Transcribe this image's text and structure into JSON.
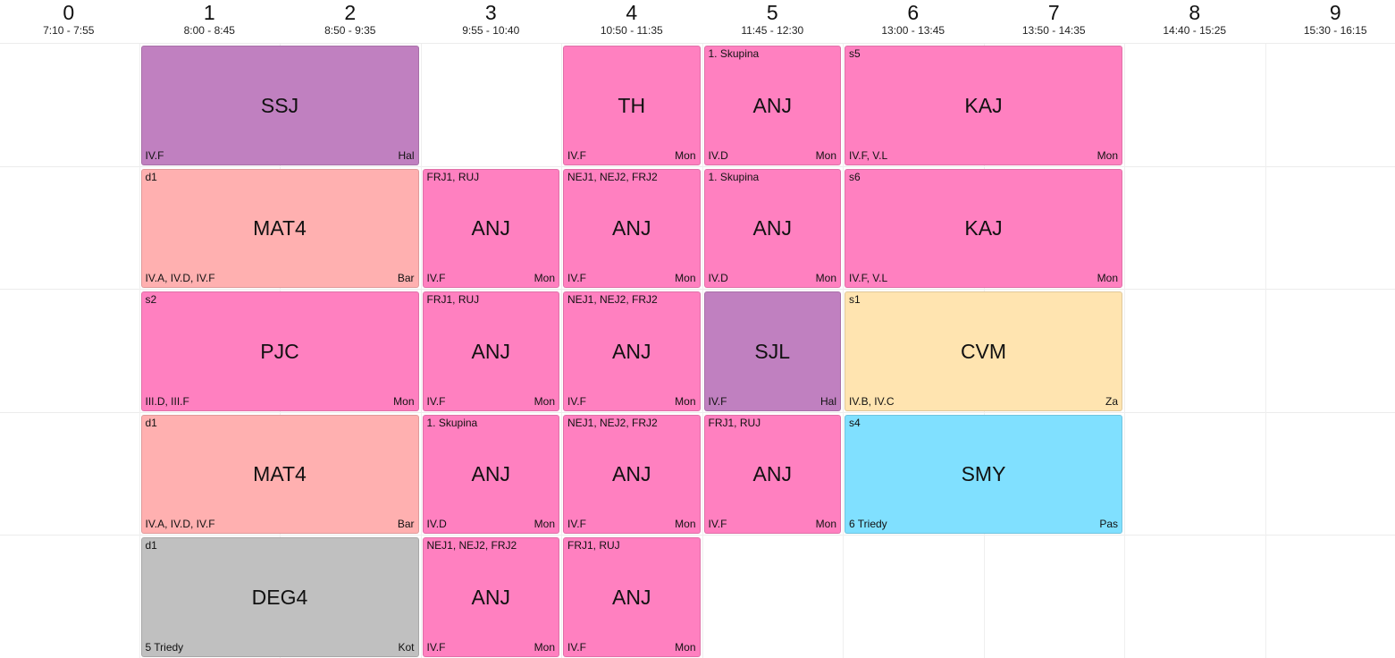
{
  "periods": [
    {
      "num": "0",
      "time": "7:10 - 7:55"
    },
    {
      "num": "1",
      "time": "8:00 - 8:45"
    },
    {
      "num": "2",
      "time": "8:50 - 9:35"
    },
    {
      "num": "3",
      "time": "9:55 - 10:40"
    },
    {
      "num": "4",
      "time": "10:50 - 11:35"
    },
    {
      "num": "5",
      "time": "11:45 - 12:30"
    },
    {
      "num": "6",
      "time": "13:00 - 13:45"
    },
    {
      "num": "7",
      "time": "13:50 - 14:35"
    },
    {
      "num": "8",
      "time": "14:40 - 15:25"
    },
    {
      "num": "9",
      "time": "15:30 - 16:15"
    }
  ],
  "colors": {
    "pink": "#ff80c0",
    "purple": "#c080c0",
    "salmon": "#ffb0b0",
    "yellow": "#ffe4b0",
    "cyan": "#80e0ff",
    "gray": "#c0c0c0"
  },
  "lessons": [
    {
      "row": 0,
      "period": 1,
      "span": 2,
      "subject": "SSJ",
      "group": "",
      "classes": "IV.F",
      "teacher": "Hal",
      "color": "purple"
    },
    {
      "row": 0,
      "period": 4,
      "span": 1,
      "subject": "TH",
      "group": "",
      "classes": "IV.F",
      "teacher": "Mon",
      "color": "pink"
    },
    {
      "row": 0,
      "period": 5,
      "span": 1,
      "subject": "ANJ",
      "group": "1. Skupina",
      "classes": "IV.D",
      "teacher": "Mon",
      "color": "pink"
    },
    {
      "row": 0,
      "period": 6,
      "span": 2,
      "subject": "KAJ",
      "group": "s5",
      "classes": "IV.F, V.L",
      "teacher": "Mon",
      "color": "pink"
    },
    {
      "row": 1,
      "period": 1,
      "span": 2,
      "subject": "MAT4",
      "group": "d1",
      "classes": "IV.A, IV.D, IV.F",
      "teacher": "Bar",
      "color": "salmon"
    },
    {
      "row": 1,
      "period": 3,
      "span": 1,
      "subject": "ANJ",
      "group": "FRJ1, RUJ",
      "classes": "IV.F",
      "teacher": "Mon",
      "color": "pink"
    },
    {
      "row": 1,
      "period": 4,
      "span": 1,
      "subject": "ANJ",
      "group": "NEJ1, NEJ2, FRJ2",
      "classes": "IV.F",
      "teacher": "Mon",
      "color": "pink"
    },
    {
      "row": 1,
      "period": 5,
      "span": 1,
      "subject": "ANJ",
      "group": "1. Skupina",
      "classes": "IV.D",
      "teacher": "Mon",
      "color": "pink"
    },
    {
      "row": 1,
      "period": 6,
      "span": 2,
      "subject": "KAJ",
      "group": "s6",
      "classes": "IV.F, V.L",
      "teacher": "Mon",
      "color": "pink"
    },
    {
      "row": 2,
      "period": 1,
      "span": 2,
      "subject": "PJC",
      "group": "s2",
      "classes": "III.D, III.F",
      "teacher": "Mon",
      "color": "pink"
    },
    {
      "row": 2,
      "period": 3,
      "span": 1,
      "subject": "ANJ",
      "group": "FRJ1, RUJ",
      "classes": "IV.F",
      "teacher": "Mon",
      "color": "pink"
    },
    {
      "row": 2,
      "period": 4,
      "span": 1,
      "subject": "ANJ",
      "group": "NEJ1, NEJ2, FRJ2",
      "classes": "IV.F",
      "teacher": "Mon",
      "color": "pink"
    },
    {
      "row": 2,
      "period": 5,
      "span": 1,
      "subject": "SJL",
      "group": "",
      "classes": "IV.F",
      "teacher": "Hal",
      "color": "purple"
    },
    {
      "row": 2,
      "period": 6,
      "span": 2,
      "subject": "CVM",
      "group": "s1",
      "classes": "IV.B, IV.C",
      "teacher": "Za",
      "color": "yellow"
    },
    {
      "row": 3,
      "period": 1,
      "span": 2,
      "subject": "MAT4",
      "group": "d1",
      "classes": "IV.A, IV.D, IV.F",
      "teacher": "Bar",
      "color": "salmon"
    },
    {
      "row": 3,
      "period": 3,
      "span": 1,
      "subject": "ANJ",
      "group": "1. Skupina",
      "classes": "IV.D",
      "teacher": "Mon",
      "color": "pink"
    },
    {
      "row": 3,
      "period": 4,
      "span": 1,
      "subject": "ANJ",
      "group": "NEJ1, NEJ2, FRJ2",
      "classes": "IV.F",
      "teacher": "Mon",
      "color": "pink"
    },
    {
      "row": 3,
      "period": 5,
      "span": 1,
      "subject": "ANJ",
      "group": "FRJ1, RUJ",
      "classes": "IV.F",
      "teacher": "Mon",
      "color": "pink"
    },
    {
      "row": 3,
      "period": 6,
      "span": 2,
      "subject": "SMY",
      "group": "s4",
      "classes": "6 Triedy",
      "teacher": "Pas",
      "color": "cyan"
    },
    {
      "row": 4,
      "period": 1,
      "span": 2,
      "subject": "DEG4",
      "group": "d1",
      "classes": "5 Triedy",
      "teacher": "Kot",
      "color": "gray"
    },
    {
      "row": 4,
      "period": 3,
      "span": 1,
      "subject": "ANJ",
      "group": "NEJ1, NEJ2, FRJ2",
      "classes": "IV.F",
      "teacher": "Mon",
      "color": "pink"
    },
    {
      "row": 4,
      "period": 4,
      "span": 1,
      "subject": "ANJ",
      "group": "FRJ1, RUJ",
      "classes": "IV.F",
      "teacher": "Mon",
      "color": "pink"
    }
  ]
}
